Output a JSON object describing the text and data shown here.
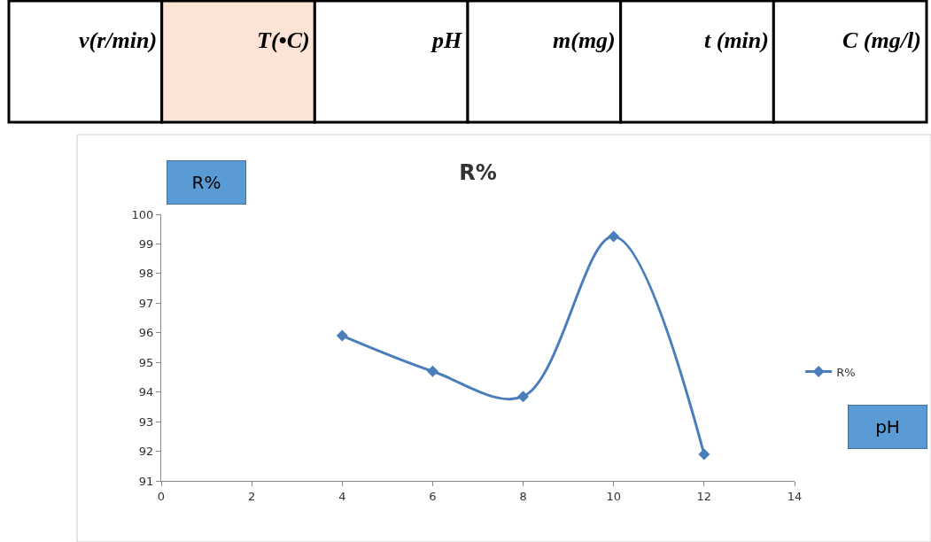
{
  "chart_data": {
    "type": "line",
    "title": "R%",
    "xlabel": "pH",
    "ylabel": "R%",
    "annotations": [
      "v(r/min)",
      "T(•C)",
      "pH",
      "m(mg)",
      "t (min)",
      "C (mg/l)"
    ],
    "x": [
      4,
      6,
      8,
      10,
      12
    ],
    "series": [
      {
        "name": "R%",
        "color": "#4a7ebb",
        "values": [
          95.9,
          94.7,
          93.85,
          99.25,
          91.9
        ]
      }
    ],
    "xlim": [
      0,
      14
    ],
    "xticks": [
      0,
      2,
      4,
      6,
      8,
      10,
      12,
      14
    ],
    "ylim": [
      91,
      100
    ],
    "yticks": [
      91,
      92,
      93,
      94,
      95,
      96,
      97,
      98,
      99,
      100
    ],
    "legend": "right",
    "marker": "diamond",
    "line_style": "solid"
  }
}
